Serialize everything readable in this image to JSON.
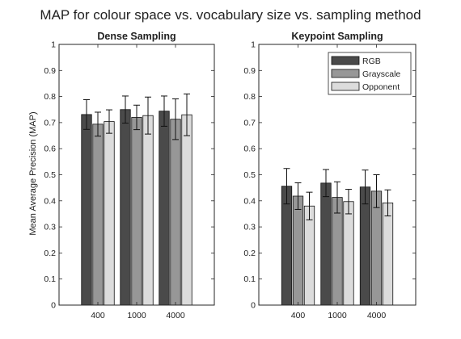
{
  "figure_title": "MAP for colour space vs. vocabulary size vs. sampling method",
  "ylabel": "Mean Average Precision (MAP)",
  "chart_data": [
    {
      "type": "bar",
      "title": "Dense Sampling",
      "categories": [
        "400",
        "1000",
        "4000"
      ],
      "ylim": [
        0,
        1
      ],
      "yticks": [
        "0",
        "0.1",
        "0.2",
        "0.3",
        "0.4",
        "0.5",
        "0.6",
        "0.7",
        "0.8",
        "0.9",
        "1"
      ],
      "ylabel": "Mean Average Precision (MAP)",
      "legend": null,
      "series": [
        {
          "name": "RGB",
          "color": "#4a4a4a",
          "values": [
            0.731,
            0.75,
            0.744
          ],
          "errors": [
            0.057,
            0.052,
            0.058
          ]
        },
        {
          "name": "Grayscale",
          "color": "#979797",
          "values": [
            0.694,
            0.72,
            0.713
          ],
          "errors": [
            0.046,
            0.047,
            0.078
          ]
        },
        {
          "name": "Opponent",
          "color": "#dcdcdc",
          "values": [
            0.704,
            0.727,
            0.73
          ],
          "errors": [
            0.045,
            0.071,
            0.08
          ]
        }
      ]
    },
    {
      "type": "bar",
      "title": "Keypoint Sampling",
      "categories": [
        "400",
        "1000",
        "4000"
      ],
      "ylim": [
        0,
        1
      ],
      "yticks": [
        "0",
        "0.1",
        "0.2",
        "0.3",
        "0.4",
        "0.5",
        "0.6",
        "0.7",
        "0.8",
        "0.9",
        "1"
      ],
      "legend": {
        "position": "top-right",
        "entries": [
          "RGB",
          "Grayscale",
          "Opponent"
        ]
      },
      "series": [
        {
          "name": "RGB",
          "color": "#4a4a4a",
          "values": [
            0.456,
            0.468,
            0.453
          ],
          "errors": [
            0.068,
            0.052,
            0.065
          ]
        },
        {
          "name": "Grayscale",
          "color": "#979797",
          "values": [
            0.418,
            0.413,
            0.437
          ],
          "errors": [
            0.051,
            0.06,
            0.063
          ]
        },
        {
          "name": "Opponent",
          "color": "#dcdcdc",
          "values": [
            0.38,
            0.397,
            0.392
          ],
          "errors": [
            0.053,
            0.047,
            0.05
          ]
        }
      ]
    }
  ]
}
